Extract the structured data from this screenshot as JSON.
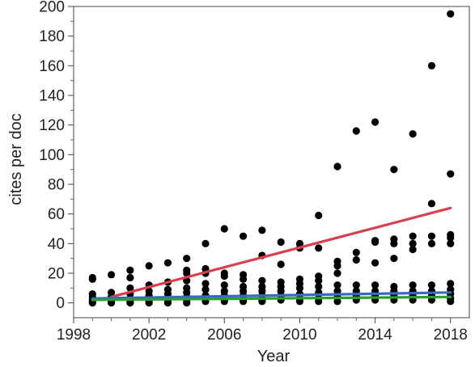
{
  "chart_data": {
    "type": "scatter",
    "title": "",
    "xlabel": "Year",
    "ylabel": "cites per doc",
    "xlim": [
      1998,
      2019
    ],
    "ylim": [
      -10,
      200
    ],
    "x_ticks": [
      1998,
      2002,
      2006,
      2010,
      2014,
      2018
    ],
    "y_ticks": [
      0,
      20,
      40,
      60,
      80,
      100,
      120,
      140,
      160,
      180,
      200
    ],
    "grid": false,
    "legend": "none",
    "points": [
      [
        1999,
        17
      ],
      [
        1999,
        16
      ],
      [
        1999,
        6
      ],
      [
        1999,
        4
      ],
      [
        1999,
        2
      ],
      [
        1999,
        1
      ],
      [
        1999,
        0
      ],
      [
        2000,
        19
      ],
      [
        2000,
        7
      ],
      [
        2000,
        4
      ],
      [
        2000,
        2
      ],
      [
        2000,
        1
      ],
      [
        2000,
        0
      ],
      [
        2001,
        22
      ],
      [
        2001,
        17
      ],
      [
        2001,
        10
      ],
      [
        2001,
        6
      ],
      [
        2001,
        3
      ],
      [
        2001,
        1
      ],
      [
        2001,
        0
      ],
      [
        2002,
        25
      ],
      [
        2002,
        12
      ],
      [
        2002,
        8
      ],
      [
        2002,
        5
      ],
      [
        2002,
        3
      ],
      [
        2002,
        1
      ],
      [
        2002,
        0
      ],
      [
        2003,
        27
      ],
      [
        2003,
        14
      ],
      [
        2003,
        9
      ],
      [
        2003,
        6
      ],
      [
        2003,
        3
      ],
      [
        2003,
        1
      ],
      [
        2003,
        0
      ],
      [
        2004,
        30
      ],
      [
        2004,
        22
      ],
      [
        2004,
        20
      ],
      [
        2004,
        15
      ],
      [
        2004,
        10
      ],
      [
        2004,
        7
      ],
      [
        2004,
        4
      ],
      [
        2004,
        2
      ],
      [
        2004,
        0
      ],
      [
        2005,
        40
      ],
      [
        2005,
        23
      ],
      [
        2005,
        20
      ],
      [
        2005,
        13
      ],
      [
        2005,
        9
      ],
      [
        2005,
        5
      ],
      [
        2005,
        3
      ],
      [
        2005,
        1
      ],
      [
        2006,
        50
      ],
      [
        2006,
        20
      ],
      [
        2006,
        18
      ],
      [
        2006,
        12
      ],
      [
        2006,
        8
      ],
      [
        2006,
        5
      ],
      [
        2006,
        2
      ],
      [
        2006,
        1
      ],
      [
        2007,
        45
      ],
      [
        2007,
        19
      ],
      [
        2007,
        16
      ],
      [
        2007,
        11
      ],
      [
        2007,
        8
      ],
      [
        2007,
        5
      ],
      [
        2007,
        2
      ],
      [
        2007,
        1
      ],
      [
        2008,
        49
      ],
      [
        2008,
        32
      ],
      [
        2008,
        15
      ],
      [
        2008,
        11
      ],
      [
        2008,
        8
      ],
      [
        2008,
        5
      ],
      [
        2008,
        2
      ],
      [
        2008,
        1
      ],
      [
        2009,
        41
      ],
      [
        2009,
        26
      ],
      [
        2009,
        14
      ],
      [
        2009,
        11
      ],
      [
        2009,
        8
      ],
      [
        2009,
        5
      ],
      [
        2009,
        2
      ],
      [
        2010,
        40
      ],
      [
        2010,
        37
      ],
      [
        2010,
        16
      ],
      [
        2010,
        13
      ],
      [
        2010,
        10
      ],
      [
        2010,
        6
      ],
      [
        2010,
        3
      ],
      [
        2010,
        1
      ],
      [
        2011,
        59
      ],
      [
        2011,
        37
      ],
      [
        2011,
        18
      ],
      [
        2011,
        15
      ],
      [
        2011,
        11
      ],
      [
        2011,
        7
      ],
      [
        2011,
        3
      ],
      [
        2011,
        1
      ],
      [
        2012,
        92
      ],
      [
        2012,
        28
      ],
      [
        2012,
        25
      ],
      [
        2012,
        20
      ],
      [
        2012,
        12
      ],
      [
        2012,
        8
      ],
      [
        2012,
        4
      ],
      [
        2012,
        1
      ],
      [
        2013,
        116
      ],
      [
        2013,
        34
      ],
      [
        2013,
        29
      ],
      [
        2013,
        12
      ],
      [
        2013,
        8
      ],
      [
        2013,
        5
      ],
      [
        2013,
        2
      ],
      [
        2014,
        122
      ],
      [
        2014,
        42
      ],
      [
        2014,
        41
      ],
      [
        2014,
        27
      ],
      [
        2014,
        12
      ],
      [
        2014,
        8
      ],
      [
        2014,
        5
      ],
      [
        2014,
        2
      ],
      [
        2015,
        90
      ],
      [
        2015,
        43
      ],
      [
        2015,
        40
      ],
      [
        2015,
        30
      ],
      [
        2015,
        11
      ],
      [
        2015,
        8
      ],
      [
        2015,
        5
      ],
      [
        2015,
        2
      ],
      [
        2016,
        114
      ],
      [
        2016,
        45
      ],
      [
        2016,
        40
      ],
      [
        2016,
        36
      ],
      [
        2016,
        12
      ],
      [
        2016,
        8
      ],
      [
        2016,
        5
      ],
      [
        2016,
        2
      ],
      [
        2017,
        160
      ],
      [
        2017,
        67
      ],
      [
        2017,
        45
      ],
      [
        2017,
        40
      ],
      [
        2017,
        12
      ],
      [
        2017,
        8
      ],
      [
        2017,
        5
      ],
      [
        2017,
        2
      ],
      [
        2018,
        195
      ],
      [
        2018,
        87
      ],
      [
        2018,
        46
      ],
      [
        2018,
        44
      ],
      [
        2018,
        40
      ],
      [
        2018,
        13
      ],
      [
        2018,
        9
      ],
      [
        2018,
        6
      ],
      [
        2018,
        3
      ],
      [
        2018,
        1
      ]
    ],
    "series": [
      {
        "color": "#d9404f",
        "type": "line",
        "x": [
          2000,
          2018
        ],
        "y": [
          4,
          64
        ]
      },
      {
        "color": "#3b67c8",
        "type": "line",
        "x": [
          1999,
          2018
        ],
        "y": [
          3,
          7
        ]
      },
      {
        "color": "#2ca02c",
        "type": "line",
        "x": [
          1999,
          2018
        ],
        "y": [
          2,
          4
        ]
      }
    ],
    "marker_color": "#000000"
  }
}
